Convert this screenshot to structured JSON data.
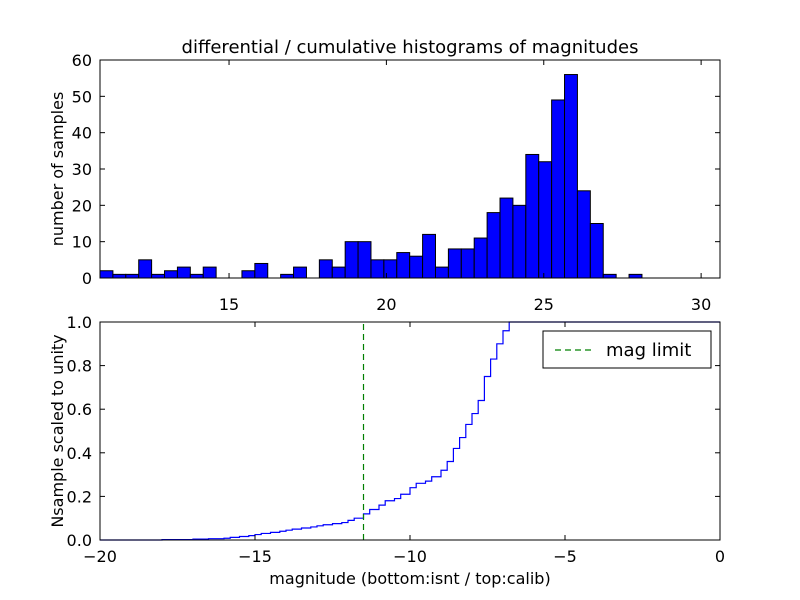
{
  "chart_data": [
    {
      "type": "bar",
      "title": "differential / cumulative histograms of magnitudes",
      "xlabel": "",
      "ylabel": "number of samples",
      "xlim": [
        10.9,
        30.6
      ],
      "ylim": [
        0,
        60
      ],
      "xticks": [
        15,
        20,
        25,
        30
      ],
      "yticks": [
        0,
        10,
        20,
        30,
        40,
        50,
        60
      ],
      "xaxis_position": "bottom ticks, labels shown below panel",
      "bar_color": "#0000ff",
      "bin_start": 10.9,
      "bin_width": 0.41,
      "values": [
        2,
        1,
        1,
        5,
        1,
        2,
        3,
        1,
        3,
        0,
        0,
        2,
        4,
        0,
        1,
        3,
        0,
        5,
        3,
        10,
        10,
        5,
        5,
        7,
        6,
        12,
        3,
        8,
        8,
        11,
        18,
        22,
        20,
        34,
        32,
        49,
        56,
        24,
        15,
        1,
        0,
        1,
        0,
        0,
        0,
        0,
        0,
        0
      ]
    },
    {
      "type": "line",
      "title": "",
      "xlabel": "magnitude (bottom:isnt / top:calib)",
      "ylabel": "Nsample scaled to unity",
      "xlim": [
        -20,
        0
      ],
      "ylim": [
        0.0,
        1.0
      ],
      "xticks": [
        -20,
        -15,
        -10,
        -5,
        0
      ],
      "yticks": [
        0.0,
        0.2,
        0.4,
        0.6,
        0.8,
        1.0
      ],
      "legend": "top-right",
      "series": [
        {
          "name": "",
          "color": "#0000ff",
          "style": "steps",
          "x": [
            -20,
            -19,
            -18,
            -17,
            -16.5,
            -16,
            -15.8,
            -15.5,
            -15.2,
            -15,
            -14.8,
            -14.5,
            -14.2,
            -14,
            -13.8,
            -13.5,
            -13.2,
            -13,
            -12.8,
            -12.5,
            -12.2,
            -12,
            -11.8,
            -11.5,
            -11.3,
            -11.0,
            -10.8,
            -10.5,
            -10.3,
            -10.0,
            -9.8,
            -9.5,
            -9.3,
            -9.0,
            -8.8,
            -8.6,
            -8.4,
            -8.2,
            -8.0,
            -7.8,
            -7.6,
            -7.4,
            -7.2,
            -7.0,
            -6.8,
            -6.6,
            -6.4
          ],
          "y": [
            0.0,
            0.0,
            0.002,
            0.004,
            0.006,
            0.008,
            0.012,
            0.016,
            0.02,
            0.025,
            0.03,
            0.035,
            0.04,
            0.045,
            0.05,
            0.055,
            0.06,
            0.065,
            0.07,
            0.075,
            0.08,
            0.09,
            0.1,
            0.12,
            0.14,
            0.16,
            0.18,
            0.19,
            0.21,
            0.24,
            0.26,
            0.27,
            0.29,
            0.32,
            0.36,
            0.42,
            0.47,
            0.53,
            0.58,
            0.64,
            0.75,
            0.83,
            0.9,
            0.96,
            1.0,
            1.0,
            1.0
          ]
        },
        {
          "name": "mag limit",
          "color": "#008000",
          "style": "dashed-vertical",
          "x": [
            -11.5,
            -11.5
          ],
          "y": [
            0.0,
            1.0
          ]
        }
      ]
    }
  ]
}
